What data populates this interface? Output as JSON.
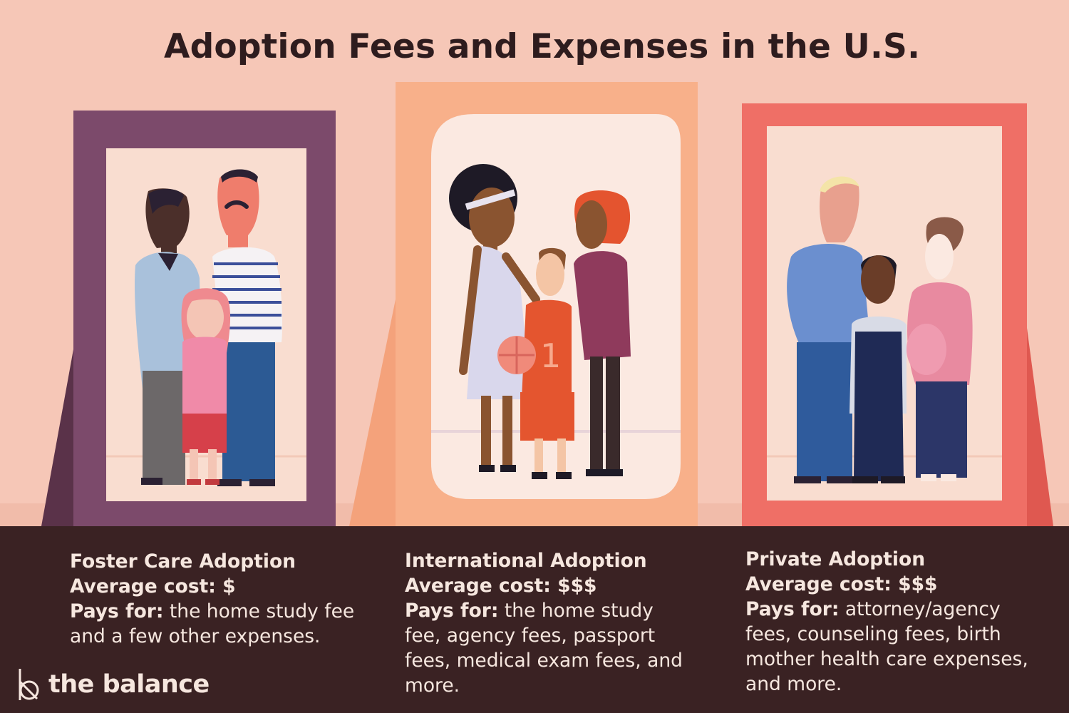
{
  "title": "Adoption Fees and Expenses in the U.S.",
  "cards": [
    {
      "name": "Foster Care Adoption",
      "cost_label": "Average cost:",
      "cost_value": "$",
      "pays_label": "Pays for:",
      "pays_text": "the home study fee and a few other expenses."
    },
    {
      "name": "International Adoption",
      "cost_label": "Average cost:",
      "cost_value": "$$$",
      "pays_label": "Pays for:",
      "pays_text": "the home study fee, agency fees, passport fees, medical exam fees, and more."
    },
    {
      "name": "Private Adoption",
      "cost_label": "Average cost:",
      "cost_value": "$$$",
      "pays_label": "Pays for:",
      "pays_text": "attorney/agency fees, counseling fees, birth mother health care expenses, and more."
    }
  ],
  "brand": "the balance",
  "illustration": {
    "jersey_number": "1",
    "colors": {
      "background": "#f6c7b7",
      "floor": "#3a2223",
      "frame_foster": "#7c4a6b",
      "frame_international": "#f8b08a",
      "frame_private": "#ef6f66"
    }
  }
}
